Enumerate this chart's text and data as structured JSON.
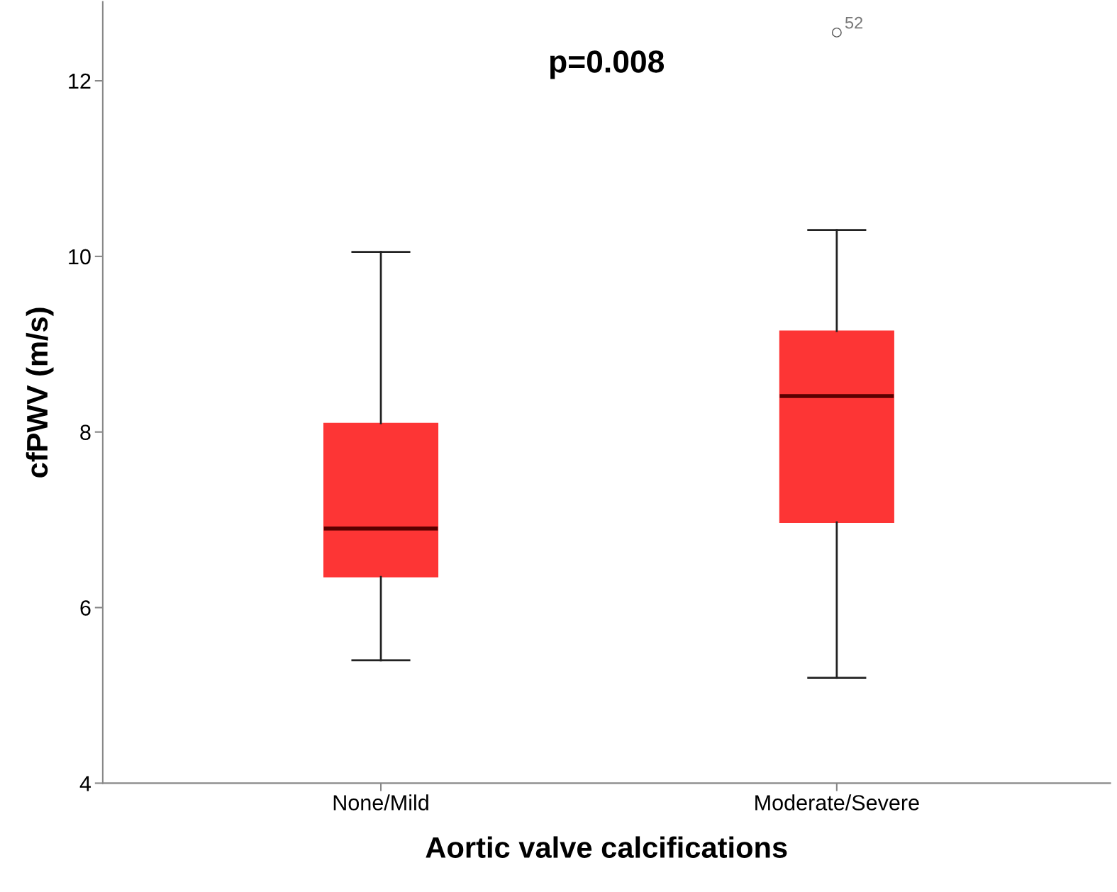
{
  "chart_data": {
    "type": "box",
    "xlabel": "Aortic valve calcifications",
    "ylabel": "cfPWV (m/s)",
    "categories": [
      "None/Mild",
      "Moderate/Severe"
    ],
    "boxes": [
      {
        "low": 5.4,
        "q1": 6.35,
        "median": 6.9,
        "q3": 8.1,
        "high": 10.05
      },
      {
        "low": 5.2,
        "q1": 6.97,
        "median": 8.41,
        "q3": 9.15,
        "high": 10.3,
        "outliers": [
          12.55
        ]
      }
    ],
    "color": "#fd3535",
    "ylim": [
      4,
      12.9
    ],
    "yticks": [
      4,
      6,
      8,
      10,
      12
    ],
    "grid": false,
    "annotations": [
      "p=0.008",
      "52"
    ]
  }
}
